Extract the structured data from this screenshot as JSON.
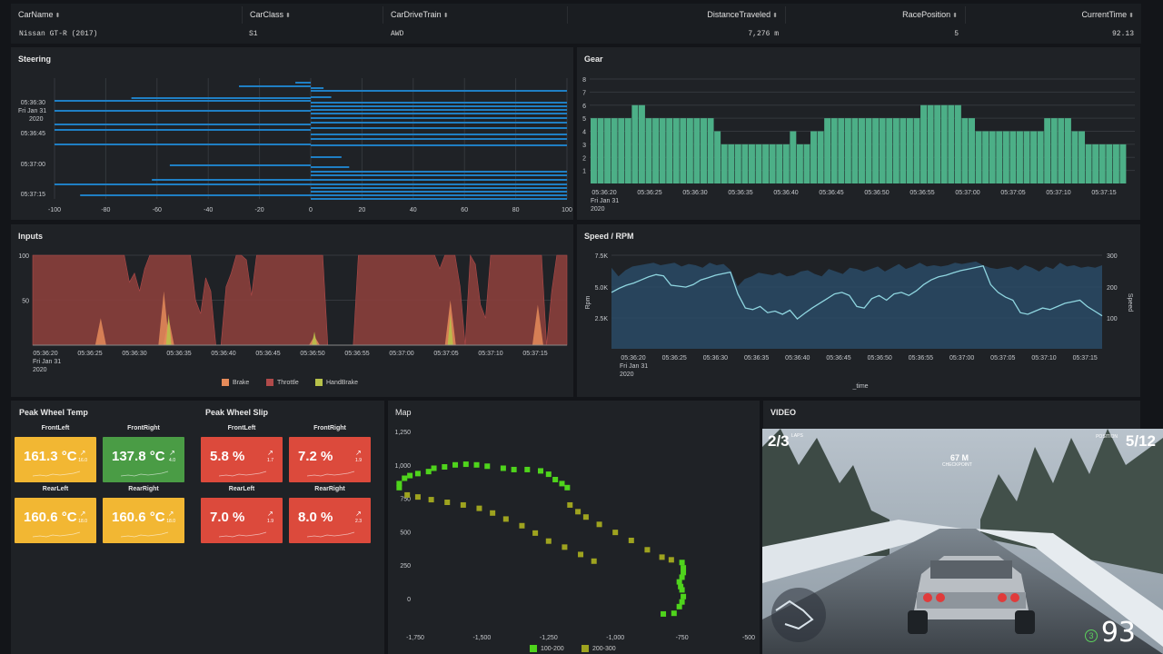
{
  "table": {
    "headers": [
      "CarName",
      "CarClass",
      "CarDriveTrain",
      "DistanceTraveled",
      "RacePosition",
      "CurrentTime"
    ],
    "row": [
      "Nissan GT-R (2017)",
      "S1",
      "AWD",
      "7,276 m",
      "5",
      "92.13"
    ]
  },
  "steering": {
    "title": "Steering",
    "x_ticks": [
      "-100",
      "-80",
      "-60",
      "-40",
      "-20",
      "0",
      "20",
      "40",
      "60",
      "80",
      "100"
    ],
    "y_ticks": [
      "05:36:30",
      "05:36:45",
      "05:37:00",
      "05:37:15"
    ],
    "y_date": [
      "Fri Jan 31",
      "2020"
    ]
  },
  "gear": {
    "title": "Gear",
    "y_ticks": [
      "1",
      "2",
      "3",
      "4",
      "5",
      "6",
      "7",
      "8"
    ],
    "x_ticks": [
      "05:36:20",
      "05:36:25",
      "05:36:30",
      "05:36:35",
      "05:36:40",
      "05:36:45",
      "05:36:50",
      "05:36:55",
      "05:37:00",
      "05:37:05",
      "05:37:10",
      "05:37:15"
    ],
    "x_date": [
      "Fri Jan 31",
      "2020"
    ]
  },
  "inputs": {
    "title": "Inputs",
    "y_ticks": [
      "100",
      "50"
    ],
    "x_ticks": [
      "05:36:20",
      "05:36:25",
      "05:36:30",
      "05:36:35",
      "05:36:40",
      "05:36:45",
      "05:36:50",
      "05:36:55",
      "05:37:00",
      "05:37:05",
      "05:37:10",
      "05:37:15"
    ],
    "x_date": [
      "Fri Jan 31",
      "2020"
    ],
    "legend": [
      "Brake",
      "Throttle",
      "HandBrake"
    ]
  },
  "speed": {
    "title": "Speed / RPM",
    "y_left_ticks": [
      "7.5K",
      "5.0K",
      "2.5K"
    ],
    "y_right_ticks": [
      "300",
      "200",
      "100"
    ],
    "y_left_label": "Rpm",
    "y_right_label": "Speed",
    "x_ticks": [
      "05:36:20",
      "05:36:25",
      "05:36:30",
      "05:36:35",
      "05:36:40",
      "05:36:45",
      "05:36:50",
      "05:36:55",
      "05:37:00",
      "05:37:05",
      "05:37:10",
      "05:37:15"
    ],
    "x_date": [
      "Fri Jan 31",
      "2020"
    ],
    "x_label": "_time"
  },
  "wheel_temp": {
    "title": "Peak Wheel Temp",
    "tiles": [
      {
        "label": "FrontLeft",
        "value": "161.3 °C",
        "delta": "16.0",
        "color": "#f2b733"
      },
      {
        "label": "FrontRight",
        "value": "137.8 °C",
        "delta": "4.0",
        "color": "#4a9c45"
      },
      {
        "label": "RearLeft",
        "value": "160.6 °C",
        "delta": "18.0",
        "color": "#f2b733"
      },
      {
        "label": "RearRight",
        "value": "160.6 °C",
        "delta": "18.0",
        "color": "#f2b733"
      }
    ]
  },
  "wheel_slip": {
    "title": "Peak Wheel Slip",
    "tiles": [
      {
        "label": "FrontLeft",
        "value": "5.8 %",
        "delta": "1.7",
        "color": "#dc4a3c"
      },
      {
        "label": "FrontRight",
        "value": "7.2 %",
        "delta": "1.9",
        "color": "#dc4a3c"
      },
      {
        "label": "RearLeft",
        "value": "7.0 %",
        "delta": "1.9",
        "color": "#dc4a3c"
      },
      {
        "label": "RearRight",
        "value": "8.0 %",
        "delta": "2.3",
        "color": "#dc4a3c"
      }
    ]
  },
  "map": {
    "title": "Map",
    "y_ticks": [
      "1,250",
      "1,000",
      "750",
      "500",
      "250",
      "0"
    ],
    "x_ticks": [
      "-1,750",
      "-1,500",
      "-1,250",
      "-1,000",
      "-750",
      "-500"
    ],
    "legend": [
      "100-200",
      "200-300"
    ]
  },
  "video": {
    "title": "VIDEO",
    "lap": "2/3",
    "lap_label": "LAPS",
    "position": "5/12",
    "position_label": "POSITION",
    "distance": "67 M",
    "distance_label": "CHECKPOINT",
    "speed": "93",
    "gear": "3"
  },
  "colors": {
    "steering": "#1f7fc4",
    "gear": "#4caf87",
    "throttle": "#8a3f3c",
    "brake": "#e58b5a",
    "handbrake": "#b7c24a",
    "rpm_fill": "#2a4a66",
    "speed_line": "#8fd6e0",
    "map_low": "#4fd41c",
    "map_high": "#9ea31f"
  }
}
